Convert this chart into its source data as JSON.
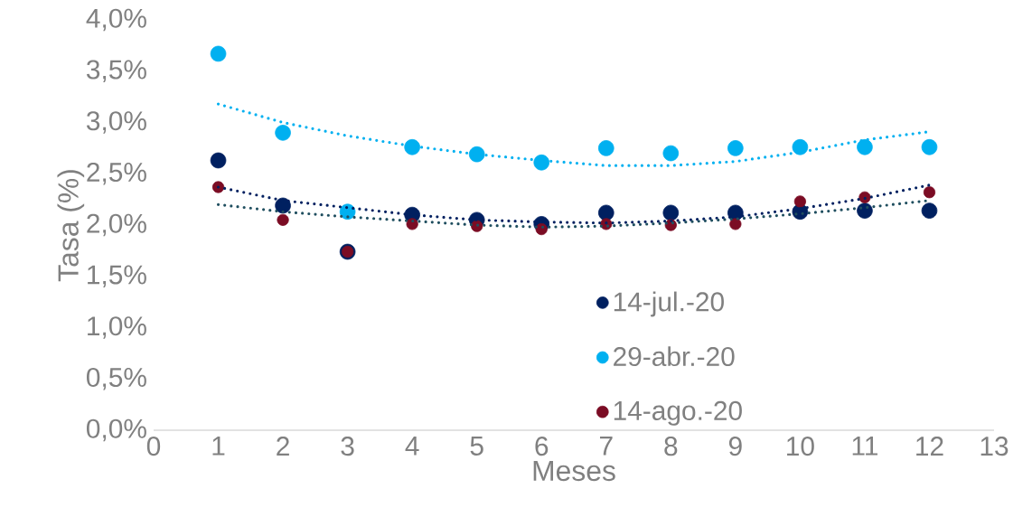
{
  "chart_data": {
    "type": "scatter",
    "xlabel": "Meses",
    "ylabel": "Tasa (%)",
    "x": [
      1,
      2,
      3,
      4,
      5,
      6,
      7,
      8,
      9,
      10,
      11,
      12
    ],
    "xlim": [
      0,
      13
    ],
    "xticks": [
      0,
      1,
      2,
      3,
      4,
      5,
      6,
      7,
      8,
      9,
      10,
      11,
      12,
      13
    ],
    "ylim": [
      0,
      4
    ],
    "yticks": [
      {
        "value": 0,
        "label": "0,0%"
      },
      {
        "value": 0.5,
        "label": "0,5%"
      },
      {
        "value": 1,
        "label": "1,0%"
      },
      {
        "value": 1.5,
        "label": "1,5%"
      },
      {
        "value": 2,
        "label": "2,0%"
      },
      {
        "value": 2.5,
        "label": "2,5%"
      },
      {
        "value": 3,
        "label": "3,0%"
      },
      {
        "value": 3.5,
        "label": "3,5%"
      },
      {
        "value": 4,
        "label": "4,0%"
      }
    ],
    "legend": "bottom",
    "grid": false,
    "series": [
      {
        "name": "14-jul.-20",
        "marker": "circle",
        "color": "#002060",
        "values": [
          2.63,
          2.19,
          1.74,
          2.1,
          2.05,
          2.01,
          2.12,
          2.12,
          2.12,
          2.13,
          2.14,
          2.14
        ]
      },
      {
        "name": "29-abr.-20",
        "marker": "circle",
        "color": "#00b0f0",
        "values": [
          3.67,
          2.9,
          2.13,
          2.76,
          2.69,
          2.61,
          2.75,
          2.7,
          2.75,
          2.76,
          2.76,
          2.76
        ]
      },
      {
        "name": "14-ago.-20",
        "marker": "circle",
        "color": "#7b0c24",
        "values": [
          2.37,
          2.05,
          1.74,
          2.01,
          1.99,
          1.96,
          2.01,
          2.0,
          2.01,
          2.23,
          2.27,
          2.32
        ]
      },
      {
        "type": "line",
        "line_style": "dotted",
        "color": "#00b0f0",
        "x": [
          1,
          2,
          3,
          4,
          5,
          6,
          7,
          8,
          9,
          10,
          11,
          12
        ],
        "values": [
          3.18,
          3.0,
          2.87,
          2.77,
          2.69,
          2.63,
          2.58,
          2.58,
          2.62,
          2.71,
          2.83,
          2.91
        ]
      },
      {
        "type": "line",
        "line_style": "dotted",
        "color": "#002060",
        "x": [
          1,
          2,
          3,
          4,
          5,
          6,
          7,
          8,
          9,
          10,
          11,
          12
        ],
        "values": [
          2.37,
          2.24,
          2.17,
          2.1,
          2.05,
          2.03,
          2.02,
          2.04,
          2.08,
          2.16,
          2.26,
          2.39
        ]
      },
      {
        "type": "line",
        "line_style": "dotted",
        "color": "#1f4e5f",
        "x": [
          1,
          2,
          3,
          4,
          5,
          6,
          7,
          8,
          9,
          10,
          11,
          12
        ],
        "values": [
          2.2,
          2.13,
          2.08,
          2.04,
          2.0,
          1.98,
          1.99,
          2.02,
          2.06,
          2.11,
          2.17,
          2.24
        ]
      }
    ]
  }
}
